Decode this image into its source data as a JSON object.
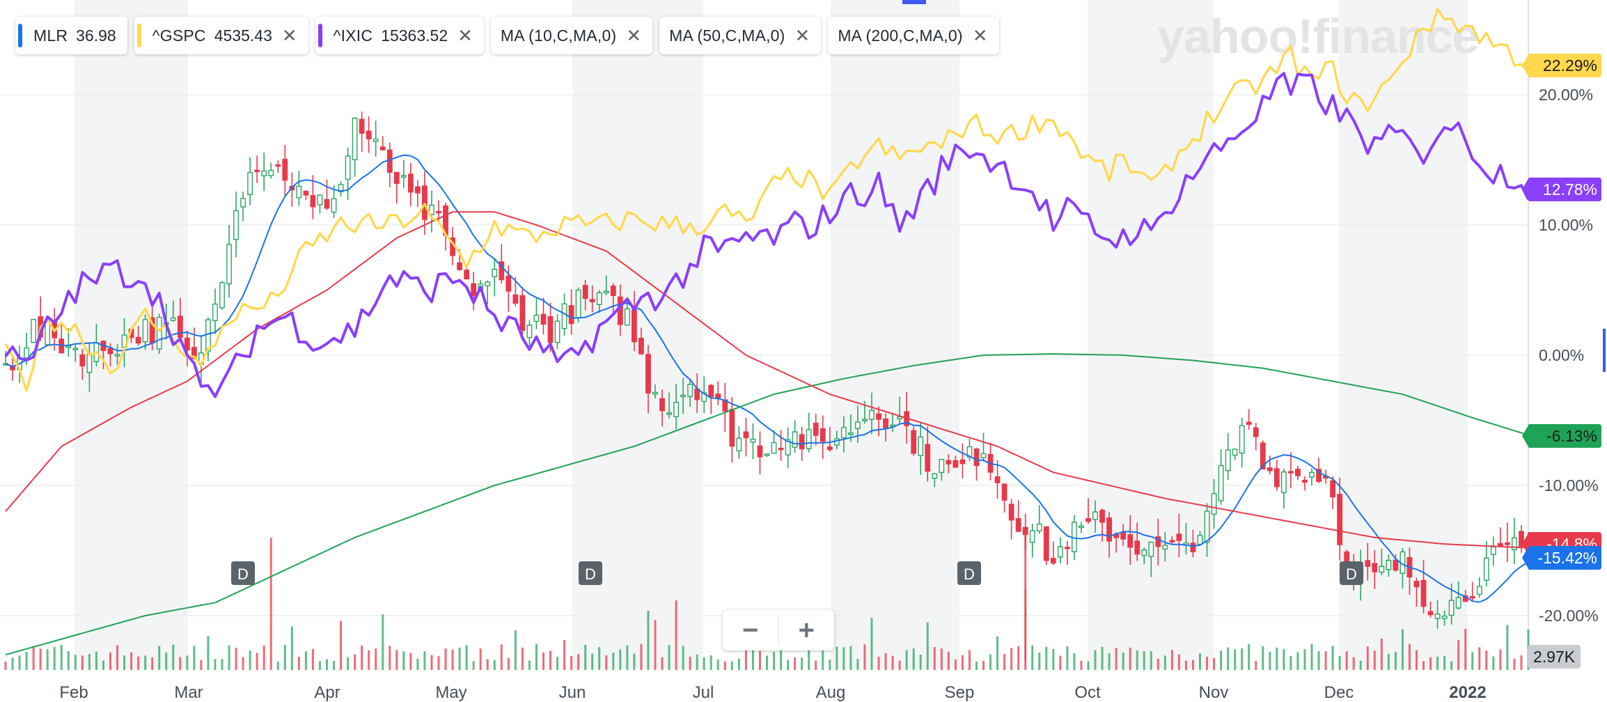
{
  "legend": [
    {
      "symbol": "MLR",
      "value": "36.98",
      "color": "#1a73e8",
      "closable": false
    },
    {
      "symbol": "^GSPC",
      "value": "4535.43",
      "color": "#ffd84d",
      "closable": true
    },
    {
      "symbol": "^IXIC",
      "value": "15363.52",
      "color": "#8a3ffc",
      "closable": true
    },
    {
      "symbol": "MA (10,C,MA,0)",
      "value": "",
      "color": "",
      "closable": true
    },
    {
      "symbol": "MA (50,C,MA,0)",
      "value": "",
      "color": "",
      "closable": true
    },
    {
      "symbol": "MA (200,C,MA,0)",
      "value": "",
      "color": "",
      "closable": true
    }
  ],
  "watermark": "yahoo!finance",
  "zoom": {
    "minus": "−",
    "plus": "+"
  },
  "chart_data": {
    "type": "line",
    "x_axis_months": [
      "Feb",
      "Mar",
      "Apr",
      "May",
      "Jun",
      "Jul",
      "Aug",
      "Sep",
      "Oct",
      "Nov",
      "Dec",
      "2022"
    ],
    "y_ticks": [
      "20.00%",
      "10.00%",
      "0.00%",
      "-10.00%",
      "-20.00%"
    ],
    "y_range_pct": [
      -23.5,
      27
    ],
    "volume_label": "2.97K",
    "dividend_markers": [
      "D",
      "D",
      "D",
      "D"
    ],
    "colors": {
      "mlr": "#1a73e8",
      "gspc": "#ffd84d",
      "ixic": "#8a3ffc",
      "ma10": "#1a73e8",
      "ma50": "#e8394b",
      "ma200": "#1fa356",
      "up": "#2aa562",
      "down": "#e8394b"
    },
    "series": [
      {
        "name": "^GSPC",
        "last_label": "22.29%",
        "knots": [
          [
            0,
            0
          ],
          [
            3,
            -2
          ],
          [
            6,
            3
          ],
          [
            10,
            2
          ],
          [
            15,
            -1
          ],
          [
            20,
            3
          ],
          [
            25,
            1
          ],
          [
            28,
            -1
          ],
          [
            32,
            3
          ],
          [
            38,
            4
          ],
          [
            43,
            8
          ],
          [
            48,
            10
          ],
          [
            55,
            10
          ],
          [
            60,
            11
          ],
          [
            66,
            7
          ],
          [
            70,
            10
          ],
          [
            75,
            9
          ],
          [
            80,
            10
          ],
          [
            85,
            10
          ],
          [
            90,
            10.5
          ],
          [
            95,
            10
          ],
          [
            100,
            10
          ],
          [
            103,
            11
          ],
          [
            106,
            10
          ],
          [
            110,
            13
          ],
          [
            113,
            14
          ],
          [
            116,
            13
          ],
          [
            118,
            12
          ],
          [
            122,
            15
          ],
          [
            125,
            16
          ],
          [
            128,
            15
          ],
          [
            131,
            16
          ],
          [
            134,
            16
          ],
          [
            138,
            18
          ],
          [
            141,
            17
          ],
          [
            144,
            17
          ],
          [
            148,
            18
          ],
          [
            150,
            18
          ],
          [
            152,
            17
          ],
          [
            155,
            15
          ],
          [
            158,
            14
          ],
          [
            160,
            15
          ],
          [
            162,
            14
          ],
          [
            164,
            13
          ],
          [
            165,
            13
          ],
          [
            167,
            15
          ],
          [
            169,
            16
          ],
          [
            172,
            18
          ],
          [
            176,
            20
          ],
          [
            180,
            21
          ],
          [
            184,
            23
          ],
          [
            187,
            21
          ],
          [
            190,
            22
          ],
          [
            192,
            20
          ],
          [
            194,
            19
          ],
          [
            196,
            20
          ],
          [
            200,
            22
          ],
          [
            202,
            25
          ],
          [
            206,
            26
          ],
          [
            210,
            25
          ],
          [
            213,
            24
          ],
          [
            216,
            23
          ],
          [
            218,
            22.3
          ]
        ]
      },
      {
        "name": "^IXIC",
        "last_label": "12.78%",
        "knots": [
          [
            0,
            0
          ],
          [
            3,
            -1
          ],
          [
            6,
            2
          ],
          [
            10,
            5
          ],
          [
            15,
            6.5
          ],
          [
            20,
            6
          ],
          [
            25,
            1
          ],
          [
            28,
            -3
          ],
          [
            32,
            -2
          ],
          [
            36,
            2
          ],
          [
            40,
            3
          ],
          [
            45,
            1
          ],
          [
            50,
            2
          ],
          [
            55,
            6
          ],
          [
            60,
            5
          ],
          [
            65,
            6
          ],
          [
            70,
            3
          ],
          [
            75,
            1
          ],
          [
            80,
            -1
          ],
          [
            85,
            2
          ],
          [
            90,
            4
          ],
          [
            95,
            5
          ],
          [
            100,
            8
          ],
          [
            103,
            8
          ],
          [
            106,
            9
          ],
          [
            110,
            9
          ],
          [
            113,
            10
          ],
          [
            116,
            10
          ],
          [
            120,
            12
          ],
          [
            125,
            13
          ],
          [
            128,
            10
          ],
          [
            131,
            12
          ],
          [
            135,
            15
          ],
          [
            138,
            16
          ],
          [
            141,
            15
          ],
          [
            144,
            14
          ],
          [
            148,
            12
          ],
          [
            150,
            10
          ],
          [
            152,
            11
          ],
          [
            155,
            10
          ],
          [
            158,
            9
          ],
          [
            160,
            9
          ],
          [
            162,
            10
          ],
          [
            164,
            9
          ],
          [
            167,
            12
          ],
          [
            170,
            14
          ],
          [
            174,
            16
          ],
          [
            178,
            18
          ],
          [
            180,
            19
          ],
          [
            182,
            21
          ],
          [
            184,
            20
          ],
          [
            186,
            21
          ],
          [
            188,
            20
          ],
          [
            192,
            18
          ],
          [
            194,
            17
          ],
          [
            196,
            16
          ],
          [
            200,
            17
          ],
          [
            202,
            15
          ],
          [
            206,
            18
          ],
          [
            210,
            16
          ],
          [
            213,
            14
          ],
          [
            216,
            14
          ],
          [
            218,
            12.8
          ]
        ]
      },
      {
        "name": "MA (50,C,MA,0)",
        "last_label": "-14.8%",
        "knots": [
          [
            0,
            -12
          ],
          [
            8,
            -7
          ],
          [
            18,
            -4
          ],
          [
            26,
            -2
          ],
          [
            36,
            2
          ],
          [
            46,
            5
          ],
          [
            56,
            9
          ],
          [
            64,
            11
          ],
          [
            70,
            11
          ],
          [
            76,
            10
          ],
          [
            86,
            8
          ],
          [
            96,
            4
          ],
          [
            106,
            0
          ],
          [
            118,
            -3
          ],
          [
            130,
            -5
          ],
          [
            142,
            -7
          ],
          [
            150,
            -9
          ],
          [
            158,
            -10
          ],
          [
            166,
            -11
          ],
          [
            176,
            -12
          ],
          [
            186,
            -13
          ],
          [
            196,
            -14
          ],
          [
            206,
            -14.5
          ],
          [
            218,
            -14.8
          ]
        ]
      },
      {
        "name": "MA (200,C,MA,0)",
        "last_label": "-6.13%",
        "knots": [
          [
            0,
            -23
          ],
          [
            10,
            -21.5
          ],
          [
            20,
            -20
          ],
          [
            30,
            -19
          ],
          [
            40,
            -16.5
          ],
          [
            50,
            -14
          ],
          [
            60,
            -12
          ],
          [
            70,
            -10
          ],
          [
            80,
            -8.5
          ],
          [
            90,
            -7
          ],
          [
            100,
            -5
          ],
          [
            110,
            -3
          ],
          [
            120,
            -1.8
          ],
          [
            130,
            -0.8
          ],
          [
            140,
            0
          ],
          [
            150,
            0.1
          ],
          [
            160,
            0
          ],
          [
            170,
            -0.4
          ],
          [
            180,
            -1
          ],
          [
            190,
            -2
          ],
          [
            200,
            -3
          ],
          [
            210,
            -4.8
          ],
          [
            218,
            -6.13
          ]
        ]
      },
      {
        "name": "MLR",
        "last_label": "-15.42%",
        "knots": [
          [
            0,
            -1
          ],
          [
            4,
            2
          ],
          [
            8,
            1
          ],
          [
            12,
            0
          ],
          [
            16,
            1
          ],
          [
            20,
            2
          ],
          [
            24,
            2
          ],
          [
            27,
            -1
          ],
          [
            30,
            4
          ],
          [
            33,
            12
          ],
          [
            36,
            15
          ],
          [
            40,
            14
          ],
          [
            44,
            11
          ],
          [
            48,
            13
          ],
          [
            50,
            18
          ],
          [
            54,
            15
          ],
          [
            58,
            12
          ],
          [
            62,
            10
          ],
          [
            66,
            5
          ],
          [
            70,
            6
          ],
          [
            74,
            3
          ],
          [
            78,
            2
          ],
          [
            82,
            4
          ],
          [
            86,
            4
          ],
          [
            89,
            3
          ],
          [
            92,
            -2
          ],
          [
            95,
            -4
          ],
          [
            98,
            -2
          ],
          [
            101,
            -3
          ],
          [
            104,
            -6
          ],
          [
            108,
            -7
          ],
          [
            112,
            -6
          ],
          [
            116,
            -7
          ],
          [
            120,
            -6
          ],
          [
            124,
            -4
          ],
          [
            128,
            -5
          ],
          [
            132,
            -8
          ],
          [
            136,
            -9
          ],
          [
            140,
            -7
          ],
          [
            144,
            -12
          ],
          [
            148,
            -14
          ],
          [
            150,
            -16
          ],
          [
            152,
            -14
          ],
          [
            156,
            -13
          ],
          [
            160,
            -14
          ],
          [
            164,
            -15
          ],
          [
            168,
            -15
          ],
          [
            172,
            -13
          ],
          [
            174,
            -9
          ],
          [
            176,
            -7
          ],
          [
            178,
            -5
          ],
          [
            181,
            -9
          ],
          [
            184,
            -9
          ],
          [
            188,
            -9
          ],
          [
            190,
            -10
          ],
          [
            192,
            -17
          ],
          [
            196,
            -17
          ],
          [
            200,
            -16
          ],
          [
            204,
            -19
          ],
          [
            208,
            -19
          ],
          [
            212,
            -16
          ],
          [
            216,
            -15
          ],
          [
            218,
            -15.4
          ]
        ]
      }
    ]
  }
}
